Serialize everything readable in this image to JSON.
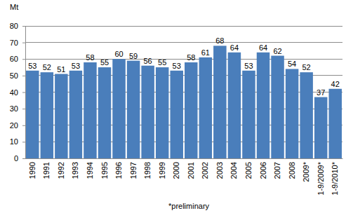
{
  "chart_data": {
    "type": "bar",
    "y_label": "Mt",
    "categories": [
      "1990",
      "1991",
      "1992",
      "1993",
      "1994",
      "1995",
      "1996",
      "1997",
      "1998",
      "1999",
      "2000",
      "2001",
      "2002",
      "2003",
      "2004",
      "2005",
      "2006",
      "2007",
      "2008",
      "2009*",
      "1-9/2009*",
      "1-9/2010*"
    ],
    "values": [
      53,
      52,
      51,
      53,
      58,
      55,
      60,
      59,
      56,
      55,
      53,
      58,
      61,
      68,
      64,
      53,
      64,
      62,
      54,
      52,
      37,
      42
    ],
    "color": "#4a7ebb",
    "ylim": [
      0,
      80
    ],
    "yticks": [
      0,
      10,
      20,
      30,
      40,
      50,
      60,
      70,
      80
    ],
    "grid": true,
    "data_labels": true,
    "annotations": [
      "*preliminary"
    ]
  }
}
